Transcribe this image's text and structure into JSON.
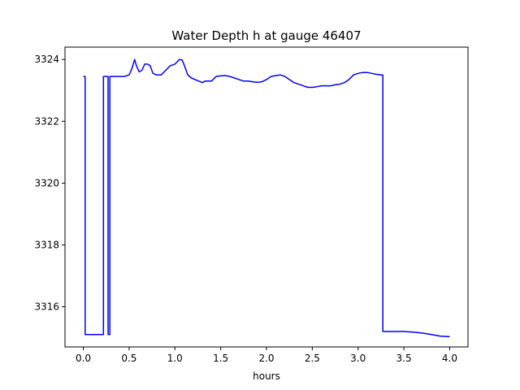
{
  "chart_data": {
    "type": "line",
    "title": "Water Depth h at gauge 46407",
    "xlabel": "hours",
    "ylabel": "",
    "xlim": [
      -0.2,
      4.2
    ],
    "ylim": [
      3314.7,
      3324.4
    ],
    "xticks": [
      0.0,
      0.5,
      1.0,
      1.5,
      2.0,
      2.5,
      3.0,
      3.5,
      4.0
    ],
    "xtick_labels": [
      "0.0",
      "0.5",
      "1.0",
      "1.5",
      "2.0",
      "2.5",
      "3.0",
      "3.5",
      "4.0"
    ],
    "yticks": [
      3316,
      3318,
      3320,
      3322,
      3324
    ],
    "ytick_labels": [
      "3316",
      "3318",
      "3320",
      "3322",
      "3324"
    ],
    "grid": false,
    "series": [
      {
        "color": "#0000ff",
        "x": [
          0.0,
          0.02,
          0.02,
          0.22,
          0.22,
          0.27,
          0.27,
          0.29,
          0.29,
          0.3,
          0.3,
          0.4,
          0.45,
          0.5,
          0.53,
          0.56,
          0.58,
          0.61,
          0.64,
          0.67,
          0.7,
          0.73,
          0.76,
          0.8,
          0.85,
          0.9,
          0.95,
          1.0,
          1.05,
          1.08,
          1.11,
          1.14,
          1.18,
          1.22,
          1.26,
          1.3,
          1.33,
          1.36,
          1.4,
          1.45,
          1.5,
          1.55,
          1.6,
          1.65,
          1.7,
          1.75,
          1.8,
          1.85,
          1.9,
          1.95,
          2.0,
          2.05,
          2.1,
          2.15,
          2.2,
          2.25,
          2.3,
          2.35,
          2.4,
          2.45,
          2.5,
          2.55,
          2.6,
          2.65,
          2.7,
          2.75,
          2.8,
          2.85,
          2.9,
          2.95,
          3.0,
          3.05,
          3.1,
          3.15,
          3.2,
          3.25,
          3.27,
          3.27,
          3.3,
          3.4,
          3.5,
          3.6,
          3.7,
          3.8,
          3.9,
          4.0
        ],
        "y": [
          3323.45,
          3323.45,
          3315.1,
          3315.1,
          3323.45,
          3323.45,
          3315.1,
          3315.1,
          3323.45,
          3323.45,
          3323.45,
          3323.45,
          3323.45,
          3323.5,
          3323.7,
          3324.0,
          3323.8,
          3323.6,
          3323.65,
          3323.85,
          3323.85,
          3323.8,
          3323.55,
          3323.5,
          3323.5,
          3323.65,
          3323.8,
          3323.85,
          3324.0,
          3323.98,
          3323.75,
          3323.5,
          3323.4,
          3323.35,
          3323.3,
          3323.25,
          3323.3,
          3323.3,
          3323.3,
          3323.45,
          3323.47,
          3323.48,
          3323.45,
          3323.4,
          3323.35,
          3323.3,
          3323.3,
          3323.28,
          3323.26,
          3323.28,
          3323.35,
          3323.45,
          3323.48,
          3323.5,
          3323.45,
          3323.35,
          3323.25,
          3323.2,
          3323.15,
          3323.1,
          3323.1,
          3323.12,
          3323.15,
          3323.15,
          3323.15,
          3323.18,
          3323.2,
          3323.25,
          3323.35,
          3323.5,
          3323.55,
          3323.58,
          3323.58,
          3323.55,
          3323.52,
          3323.5,
          3323.5,
          3315.2,
          3315.2,
          3315.2,
          3315.2,
          3315.18,
          3315.15,
          3315.1,
          3315.05,
          3315.03
        ]
      }
    ]
  }
}
